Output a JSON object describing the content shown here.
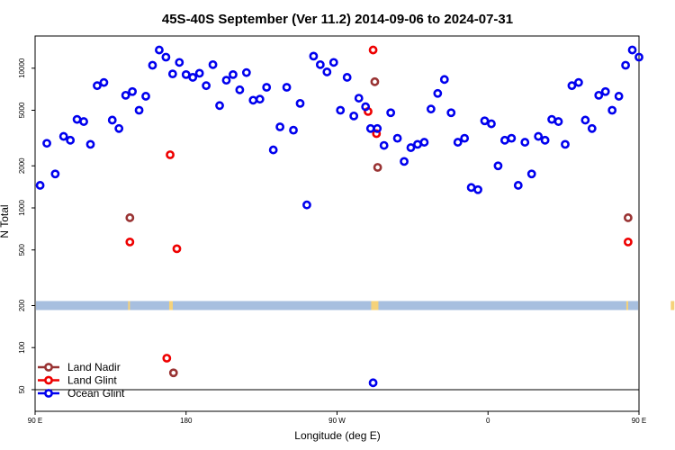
{
  "chart_data": {
    "type": "scatter",
    "title": "45S-40S September (Ver 11.2)   2014-09-06 to 2024-07-31",
    "xlabel": "Longitude (deg E)",
    "ylabel": "N Total",
    "xlim": [
      90,
      450
    ],
    "ylim": [
      35,
      17000
    ],
    "y_scale": "log",
    "x_ticks": [
      {
        "value": 90,
        "label": "90 E"
      },
      {
        "value": 180,
        "label": "180"
      },
      {
        "value": 270,
        "label": "90 W"
      },
      {
        "value": 360,
        "label": "0"
      },
      {
        "value": 450,
        "label": "90 E"
      },
      {
        "value": 540,
        "label": "180"
      }
    ],
    "y_ticks": [
      {
        "value": 50,
        "label": "50"
      },
      {
        "value": 100,
        "label": "100"
      },
      {
        "value": 200,
        "label": "200"
      },
      {
        "value": 500,
        "label": "500"
      },
      {
        "value": 1000,
        "label": "1000"
      },
      {
        "value": 2000,
        "label": "2000"
      },
      {
        "value": 5000,
        "label": "5000"
      },
      {
        "value": 10000,
        "label": "10000"
      }
    ],
    "reference_line_y": 50,
    "land_strip_y": 200,
    "legend_position": "bottom-left",
    "series": [
      {
        "name": "Land Nadir",
        "color": "#993333",
        "x": [
          146.5,
          172.5,
          292.5,
          294.2,
          443.5,
          479.5,
          470.5,
          472.5
        ],
        "y": [
          850,
          66,
          8000,
          1950,
          850,
          66,
          44,
          44
        ]
      },
      {
        "name": "Land Glint",
        "color": "#ee0000",
        "x": [
          146.5,
          170.5,
          174.5,
          288.5,
          291.5,
          293.5,
          443.5,
          470.5,
          479.5,
          482.5,
          168.5
        ],
        "y": [
          570,
          2400,
          510,
          4900,
          13500,
          3400,
          570,
          84,
          2400,
          510,
          84
        ]
      },
      {
        "name": "Ocean Glint",
        "color": "#0000ee",
        "x": [
          93,
          97,
          102,
          107,
          111,
          115,
          119,
          123,
          127,
          131,
          136,
          140,
          144,
          148,
          152,
          156,
          160,
          164,
          168,
          172,
          176,
          180,
          184,
          188,
          192,
          196,
          200,
          204,
          208,
          212,
          216,
          220,
          224,
          228,
          232,
          236,
          240,
          244,
          248,
          252,
          256,
          260,
          264,
          268,
          272,
          276,
          280,
          283,
          287,
          290,
          294,
          298,
          302,
          306,
          310,
          314,
          318,
          322,
          326,
          330,
          334,
          338,
          342,
          346,
          350,
          354,
          358,
          362,
          366,
          370,
          374,
          378,
          382,
          386,
          390,
          394,
          398,
          402,
          406,
          410,
          414,
          418,
          422,
          426,
          430,
          434,
          438,
          442,
          446,
          450,
          454,
          458,
          462,
          466,
          470,
          474,
          478,
          482,
          291.5
        ],
        "y": [
          1450,
          2900,
          1750,
          3250,
          3050,
          4300,
          4150,
          2850,
          7500,
          7900,
          4250,
          3700,
          6400,
          6800,
          5000,
          6300,
          10500,
          13500,
          12000,
          9100,
          11000,
          9000,
          8600,
          9200,
          7500,
          10600,
          5400,
          8200,
          9000,
          7000,
          9300,
          5900,
          6000,
          7300,
          2600,
          3800,
          7300,
          3600,
          5600,
          1050,
          12200,
          10600,
          9400,
          11000,
          5000,
          8600,
          4550,
          6100,
          5300,
          3700,
          3700,
          2800,
          4800,
          3150,
          2150,
          2700,
          2850,
          2950,
          5100,
          6600,
          8300,
          4800,
          2950,
          3150,
          1400,
          1350,
          4200,
          4000,
          2000,
          3050,
          3150,
          1450,
          2950,
          1750,
          3250,
          3050,
          4300,
          4150,
          2850,
          7500,
          7900,
          4250,
          3700,
          6400,
          6800,
          5000,
          6300,
          10500,
          13500,
          12000,
          9100,
          11000,
          9000,
          8600,
          9200,
          7500,
          10600,
          5400,
          56
        ]
      }
    ]
  }
}
